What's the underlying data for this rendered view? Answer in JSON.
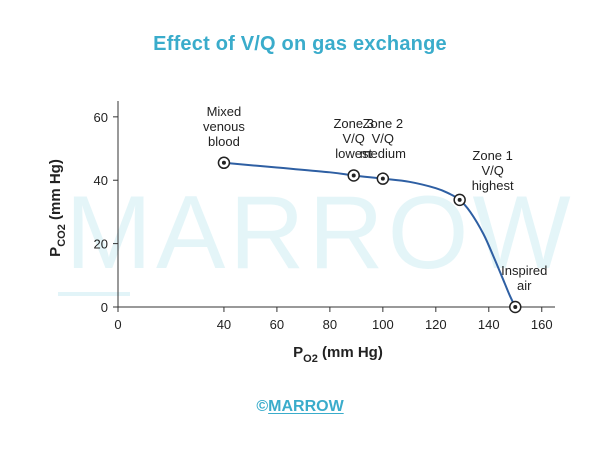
{
  "chart_data": {
    "type": "line",
    "title": "Effect of V/Q on gas exchange",
    "xlabel": "P",
    "xlabel_sub": "O2",
    "xlabel_unit": " (mm Hg)",
    "ylabel": "P",
    "ylabel_sub": "CO2",
    "ylabel_unit": " (mm Hg)",
    "xlim": [
      0,
      165
    ],
    "ylim": [
      0,
      65
    ],
    "xticks": [
      0,
      40,
      60,
      80,
      100,
      120,
      140,
      160
    ],
    "yticks": [
      0,
      20,
      40,
      60
    ],
    "grid": false,
    "line_color": "#2e5fa3",
    "curve": {
      "x": [
        40,
        60,
        80,
        89,
        100,
        110,
        120,
        125,
        129,
        133,
        138,
        142,
        146,
        148,
        150
      ],
      "y": [
        45.5,
        44,
        42.5,
        41.5,
        40.5,
        39.5,
        37.5,
        35.8,
        33.8,
        30,
        23,
        15.5,
        7.5,
        3.5,
        0
      ]
    },
    "points": [
      {
        "x": 40,
        "y": 45.5,
        "label": [
          "Mixed",
          "venous",
          "blood"
        ]
      },
      {
        "x": 89,
        "y": 41.5,
        "label": [
          "Zone 3",
          "V/Q",
          "lowest"
        ]
      },
      {
        "x": 100,
        "y": 40.5,
        "label": [
          "Zone 2",
          "V/Q",
          "medium"
        ]
      },
      {
        "x": 129,
        "y": 33.8,
        "label": [
          "Zone 1",
          "V/Q",
          "highest"
        ]
      },
      {
        "x": 150,
        "y": 0,
        "label": [
          "Inspired",
          "air"
        ]
      }
    ]
  },
  "watermark": "MARROW",
  "footer": {
    "copyright": "©",
    "brand": "MARROW"
  }
}
